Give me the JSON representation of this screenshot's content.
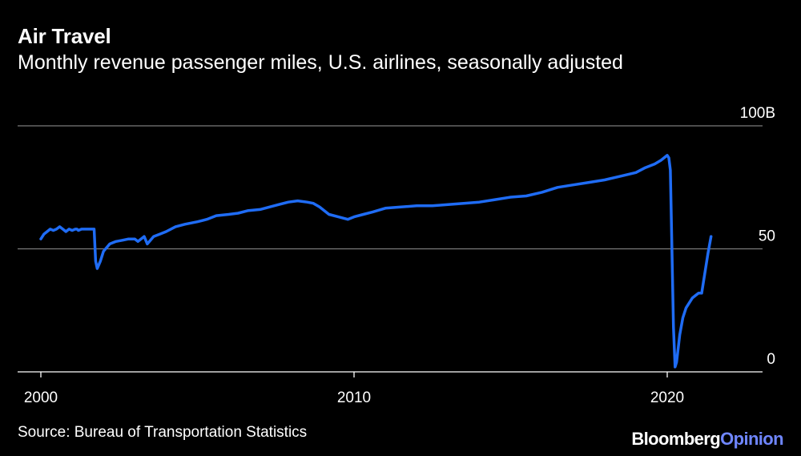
{
  "title": "Air Travel",
  "subtitle": "Monthly revenue passenger miles, U.S. airlines, seasonally adjusted",
  "source": "Source: Bureau of Transportation Statistics",
  "brand": {
    "part1": "Bloomberg",
    "part2": "Opinion"
  },
  "colors": {
    "background": "#000000",
    "line": "#1f6cf5",
    "grid": "#7a7a7a",
    "text": "#ffffff",
    "brand_accent": "#6f86ff"
  },
  "chart_data": {
    "type": "line",
    "ylim": [
      0,
      100
    ],
    "xlim": [
      2000,
      2022.9
    ],
    "yticks": [
      {
        "value": 100,
        "label": "100B"
      },
      {
        "value": 50,
        "label": "50"
      },
      {
        "value": 0,
        "label": "0"
      }
    ],
    "xticks": [
      {
        "value": 2000,
        "label": "2000"
      },
      {
        "value": 2010,
        "label": "2010"
      },
      {
        "value": 2020,
        "label": "2020"
      }
    ],
    "grid": true,
    "series": [
      {
        "x": [
          2000.0,
          2000.1,
          2000.2,
          2000.3,
          2000.4,
          2000.5,
          2000.6,
          2000.7,
          2000.8,
          2000.9,
          2001.0,
          2001.1,
          2001.15,
          2001.2,
          2001.3,
          2001.4,
          2001.5,
          2001.6,
          2001.7,
          2001.75,
          2001.8,
          2001.9,
          2002.0,
          2002.2,
          2002.4,
          2002.6,
          2002.8,
          2003.0,
          2003.1,
          2003.2,
          2003.3,
          2003.4,
          2003.6,
          2003.8,
          2004.0,
          2004.3,
          2004.6,
          2005.0,
          2005.3,
          2005.6,
          2006.0,
          2006.3,
          2006.6,
          2007.0,
          2007.3,
          2007.6,
          2007.9,
          2008.2,
          2008.5,
          2008.7,
          2008.9,
          2009.2,
          2009.5,
          2009.8,
          2010.0,
          2010.3,
          2010.6,
          2011.0,
          2011.5,
          2012.0,
          2012.5,
          2013.0,
          2013.5,
          2014.0,
          2014.5,
          2015.0,
          2015.5,
          2016.0,
          2016.5,
          2017.0,
          2017.5,
          2018.0,
          2018.5,
          2019.0,
          2019.3,
          2019.6,
          2019.8,
          2019.9,
          2020.0,
          2020.05,
          2020.1,
          2020.2,
          2020.25,
          2020.3,
          2020.4,
          2020.5,
          2020.6,
          2020.8,
          2020.9,
          2021.0,
          2021.1,
          2021.2,
          2021.3,
          2021.4
        ],
        "y": [
          54,
          56,
          57,
          58,
          57.5,
          58,
          59,
          58,
          57,
          58,
          57.5,
          58,
          58,
          57.5,
          58,
          58,
          58,
          58,
          58,
          45,
          42,
          45,
          49,
          52,
          53,
          53.5,
          54,
          54,
          53,
          54,
          55,
          52,
          55,
          56,
          57,
          59,
          60,
          61,
          62,
          63.5,
          64,
          64.5,
          65.5,
          66,
          67,
          68,
          69,
          69.5,
          69,
          68.5,
          67,
          64,
          63,
          62,
          63,
          64,
          65,
          66.5,
          67,
          67.5,
          67.5,
          68,
          68.5,
          69,
          70,
          71,
          71.5,
          73,
          75,
          76,
          77,
          78,
          79.5,
          81,
          83,
          84.5,
          86,
          87,
          88,
          87,
          82,
          18,
          2,
          4,
          15,
          22,
          26,
          30,
          31,
          32,
          32,
          40,
          48,
          55
        ]
      }
    ]
  }
}
